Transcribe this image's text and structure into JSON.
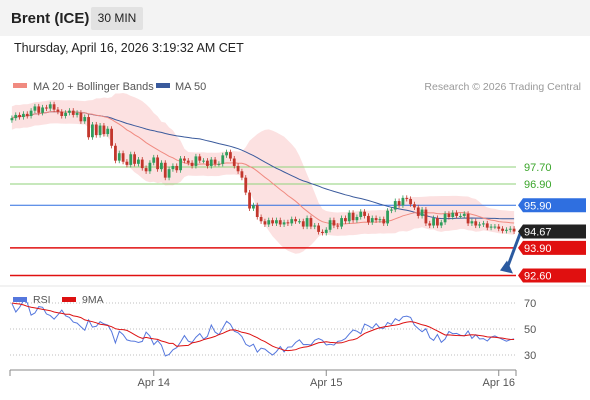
{
  "header": {
    "instrument": "Brent (ICE)",
    "timeframe": "30 MIN"
  },
  "datetime": "Thursday, April 16, 2026 3:19:32 AM CET",
  "colors": {
    "candle_up": "#2e9d5c",
    "candle_down": "#c2362c",
    "ma20": "#f08a80",
    "bands_fill": "#fbdcdc",
    "ma50": "#3a5a9c",
    "rsi": "#5577dd",
    "rsi_ma": "#dd1111",
    "support": "#e01010",
    "resistance": "#8fd27a",
    "price_box": "#222222",
    "pivot_box": "#2f6fe0"
  },
  "chart_data": [
    {
      "type": "candlestick",
      "legend": [
        {
          "label": "MA 20 + Bollinger Bands",
          "color": "#f08a80"
        },
        {
          "label": "MA 50",
          "color": "#3a5a9c"
        }
      ],
      "credit": "Research © 2026 Trading Central",
      "x_ticks": [
        {
          "label": "Apr 14",
          "index": 37
        },
        {
          "label": "Apr 15",
          "index": 82
        },
        {
          "label": "Apr 16",
          "index": 127
        }
      ],
      "ylim": [
        92.2,
        99.3
      ],
      "levels": [
        {
          "label": "97.70",
          "value": 97.7,
          "kind": "resistance"
        },
        {
          "label": "96.90",
          "value": 96.9,
          "kind": "resistance"
        },
        {
          "label": "95.90",
          "value": 95.9,
          "kind": "pivot"
        },
        {
          "label": "94.67",
          "value": 94.67,
          "kind": "last"
        },
        {
          "label": "93.90",
          "value": 93.9,
          "kind": "support"
        },
        {
          "label": "92.60",
          "value": 92.6,
          "kind": "support"
        }
      ],
      "close": [
        100.0,
        100.15,
        100.05,
        100.2,
        100.1,
        100.35,
        100.55,
        100.25,
        100.5,
        100.45,
        100.65,
        100.4,
        100.3,
        100.1,
        100.25,
        100.35,
        100.15,
        100.25,
        99.85,
        100.05,
        99.1,
        99.7,
        99.2,
        99.65,
        99.25,
        99.5,
        98.7,
        98.0,
        98.35,
        97.95,
        97.8,
        98.3,
        97.85,
        98.05,
        97.65,
        97.5,
        97.9,
        98.15,
        97.6,
        97.9,
        97.2,
        97.6,
        97.75,
        97.55,
        98.1,
        98.0,
        97.9,
        97.75,
        98.2,
        98.0,
        98.0,
        97.75,
        98.05,
        97.85,
        97.85,
        98.25,
        98.4,
        98.1,
        97.75,
        97.5,
        97.2,
        96.5,
        95.75,
        95.9,
        95.35,
        95.15,
        95.0,
        95.2,
        95.05,
        95.2,
        95.0,
        95.1,
        95.05,
        95.25,
        95.15,
        95.15,
        94.9,
        95.3,
        94.9,
        94.95,
        94.65,
        94.6,
        94.75,
        95.2,
        94.95,
        94.9,
        95.3,
        95.15,
        95.55,
        95.2,
        95.35,
        95.6,
        95.4,
        95.1,
        95.3,
        95.2,
        95.25,
        95.05,
        95.65,
        95.7,
        96.1,
        95.9,
        96.25,
        96.2,
        95.95,
        95.8,
        95.4,
        95.7,
        95.05,
        94.95,
        95.3,
        94.95,
        95.1,
        95.5,
        95.35,
        95.55,
        95.4,
        95.4,
        95.5,
        95.05,
        95.15,
        94.95,
        95.0,
        95.05,
        94.85,
        94.9,
        94.9,
        94.8,
        94.7,
        94.75,
        94.8,
        94.67
      ],
      "rsi": {
        "legend": [
          {
            "label": "RSI",
            "color": "#5577dd"
          },
          {
            "label": "9MA",
            "color": "#dd1111"
          }
        ],
        "y_ticks": [
          70,
          50,
          30
        ],
        "ylim": [
          20,
          80
        ],
        "values": [
          69.7,
          63.1,
          66.7,
          71.7,
          70.2,
          60.7,
          62.3,
          67.2,
          66.7,
          61.6,
          60.3,
          57.6,
          60.9,
          64.5,
          60.1,
          58.9,
          55.3,
          54.5,
          51.8,
          49.1,
          57.1,
          51.5,
          52.1,
          55.6,
          53.9,
          53.1,
          48.1,
          39.3,
          48.2,
          45.7,
          41.6,
          40.8,
          40.6,
          39.6,
          40.5,
          47.6,
          44.6,
          38.0,
          41.1,
          37.6,
          29.2,
          30.5,
          34.0,
          35.7,
          40.0,
          44.9,
          40.6,
          39.7,
          43.7,
          46.5,
          42.2,
          44.3,
          53.1,
          47.6,
          45.6,
          50.8,
          55.9,
          53.7,
          48.3,
          47.1,
          44.2,
          38.2,
          36.6,
          38.3,
          32.2,
          35.2,
          34.5,
          32.1,
          30.0,
          32.6,
          36.5,
          32.4,
          36.1,
          36.2,
          39.6,
          41.7,
          38.0,
          38.1,
          37.7,
          41.4,
          42.7,
          41.3,
          37.7,
          38.3,
          37.6,
          40.5,
          41.0,
          42.6,
          46.2,
          49.2,
          48.3,
          46.4,
          53.8,
          52.5,
          50.6,
          54.1,
          50.8,
          50.5,
          55.0,
          53.5,
          57.9,
          56.2,
          59.4,
          59.9,
          58.9,
          53.0,
          50.3,
          47.9,
          50.2,
          43.3,
          41.2,
          45.8,
          39.8,
          42.3,
          48.1,
          46.4,
          46.6,
          45.2,
          44.6,
          48.5,
          42.8,
          45.6,
          42.3,
          42.6,
          40.8,
          43.8,
          44.7,
          43.2,
          42.0,
          40.6,
          41.8,
          42.5
        ],
        "ma9": [
          70.0,
          69.5,
          69.2,
          68.5,
          67.5,
          66.8,
          66.2,
          65.7,
          65.1,
          64.6,
          64.1,
          63.1,
          62.5,
          62.0,
          61.4,
          61.3,
          60.1,
          59.6,
          58.8,
          57.0,
          56.3,
          55.6,
          54.8,
          53.7,
          53.3,
          52.7,
          51.8,
          50.2,
          49.6,
          49.5,
          48.9,
          47.4,
          45.6,
          44.0,
          42.8,
          43.5,
          42.9,
          42.4,
          42.0,
          40.8,
          40.0,
          38.9,
          38.9,
          36.7,
          37.0,
          37.2,
          37.4,
          39.3,
          39.9,
          40.7,
          41.8,
          42.6,
          43.4,
          44.3,
          45.7,
          46.7,
          48.1,
          49.2,
          49.3,
          48.5,
          47.5,
          46.9,
          46.1,
          44.7,
          43.3,
          41.6,
          40.3,
          38.5,
          36.8,
          35.6,
          34.8,
          33.7,
          33.4,
          33.6,
          34.1,
          35.2,
          35.9,
          36.3,
          37.2,
          38.4,
          39.4,
          39.8,
          40.2,
          39.7,
          39.5,
          39.2,
          39.4,
          40.2,
          41.3,
          41.8,
          42.6,
          44.7,
          46.6,
          47.8,
          48.9,
          50.1,
          51.0,
          51.6,
          52.0,
          52.6,
          53.0,
          53.5,
          54.6,
          55.3,
          55.7,
          55.2,
          54.2,
          53.2,
          52.6,
          51.5,
          49.9,
          48.5,
          46.9,
          45.4,
          45.5,
          45.2,
          45.0,
          44.9,
          44.8,
          45.3,
          45.6,
          45.4,
          45.0,
          44.6,
          43.9,
          43.8,
          43.6,
          43.3,
          43.0,
          42.4,
          42.0,
          41.9
        ]
      }
    }
  ]
}
